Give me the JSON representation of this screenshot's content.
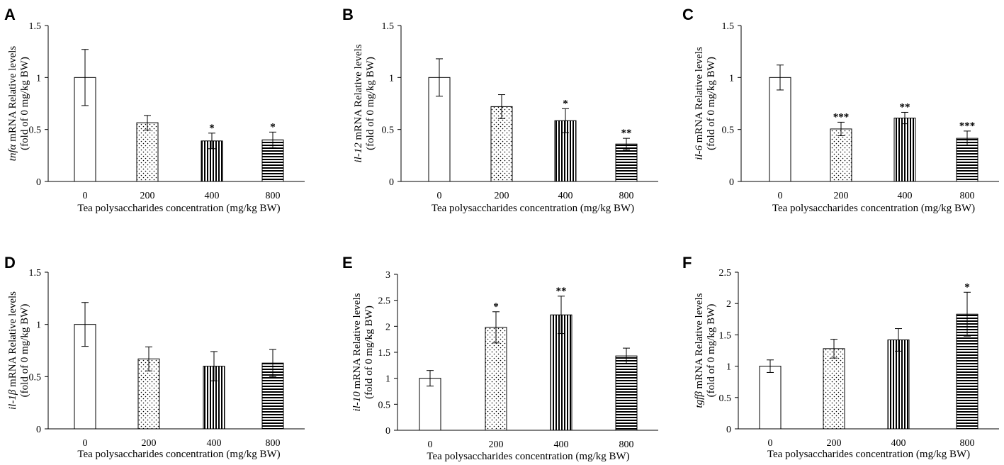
{
  "figure": {
    "xlabel": "Tea polysaccharides concentration (mg/kg BW)",
    "categories": [
      "0",
      "200",
      "400",
      "800"
    ],
    "ylabel_rest": " mRNA Relative levels",
    "ylabel_sub": "(fold of 0 mg/kg BW)"
  },
  "chart_data": [
    {
      "letter": "A",
      "type": "bar",
      "gene": "tnfα",
      "ylim": [
        0,
        1.5
      ],
      "yticks": [
        "0",
        "0.5",
        "1",
        "1.5"
      ],
      "values": [
        1.0,
        0.565,
        0.39,
        0.4
      ],
      "errors": [
        0.27,
        0.07,
        0.075,
        0.075
      ],
      "sig": [
        "",
        "",
        "*",
        "*"
      ]
    },
    {
      "letter": "B",
      "type": "bar",
      "gene": "il-12",
      "ylim": [
        0,
        1.5
      ],
      "yticks": [
        "0",
        "0.5",
        "1",
        "1.5"
      ],
      "values": [
        1.0,
        0.72,
        0.585,
        0.36
      ],
      "errors": [
        0.18,
        0.115,
        0.115,
        0.055
      ],
      "sig": [
        "",
        "",
        "*",
        "**"
      ]
    },
    {
      "letter": "C",
      "type": "bar",
      "gene": "il-6",
      "ylim": [
        0,
        1.5
      ],
      "yticks": [
        "0",
        "0.5",
        "1",
        "1.5"
      ],
      "values": [
        1.0,
        0.505,
        0.61,
        0.415
      ],
      "errors": [
        0.12,
        0.065,
        0.055,
        0.07
      ],
      "sig": [
        "",
        "***",
        "**",
        "***"
      ]
    },
    {
      "letter": "D",
      "type": "bar",
      "gene": "il-1β",
      "ylim": [
        0,
        1.5
      ],
      "yticks": [
        "0",
        "0.5",
        "1",
        "1.5"
      ],
      "values": [
        1.0,
        0.67,
        0.6,
        0.63
      ],
      "errors": [
        0.21,
        0.115,
        0.14,
        0.13
      ],
      "sig": [
        "",
        "",
        "",
        ""
      ]
    },
    {
      "letter": "E",
      "type": "bar",
      "gene": "il-10",
      "ylim": [
        0,
        3
      ],
      "yticks": [
        "0",
        "0.5",
        "1",
        "1.5",
        "2",
        "2.5",
        "3"
      ],
      "values": [
        1.0,
        1.98,
        2.22,
        1.43
      ],
      "errors": [
        0.15,
        0.3,
        0.36,
        0.15
      ],
      "sig": [
        "",
        "*",
        "**",
        ""
      ]
    },
    {
      "letter": "F",
      "type": "bar",
      "gene": "tgfβ",
      "ylim": [
        0,
        2.5
      ],
      "yticks": [
        "0",
        "0.5",
        "1",
        "1.5",
        "2",
        "2.5"
      ],
      "values": [
        1.0,
        1.28,
        1.42,
        1.83
      ],
      "errors": [
        0.1,
        0.15,
        0.18,
        0.35
      ],
      "sig": [
        "",
        "",
        "",
        "*"
      ]
    }
  ]
}
